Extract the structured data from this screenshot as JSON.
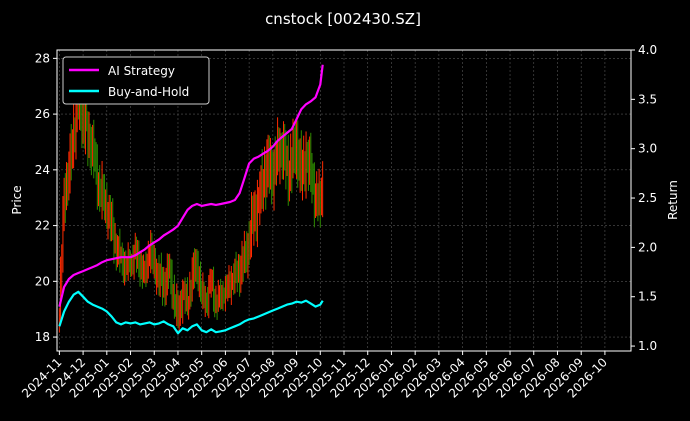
{
  "chart_data": {
    "type": "line",
    "title": "cnstock [002430.SZ]",
    "ylabel_left": "Price",
    "ylabel_right": "Return",
    "y_left_lim": [
      17.5,
      28.3
    ],
    "y_left_ticks": [
      18,
      20,
      22,
      24,
      26,
      28
    ],
    "y_right_lim": [
      0.95,
      4.0
    ],
    "y_right_ticks": [
      1.0,
      1.5,
      2.0,
      2.5,
      3.0,
      3.5,
      4.0
    ],
    "x_ticks": [
      "2024-11",
      "2024-12",
      "2025-01",
      "2025-02",
      "2025-03",
      "2025-04",
      "2025-05",
      "2025-06",
      "2025-07",
      "2025-08",
      "2025-09",
      "2025-10",
      "2025-11",
      "2025-12",
      "2026-01",
      "2026-02",
      "2026-03",
      "2026-04",
      "2026-05",
      "2026-06",
      "2026-07",
      "2026-08",
      "2026-09",
      "2026-10"
    ],
    "x_range_months": [
      -0.1,
      24.1
    ],
    "legend_position": "top-left",
    "grid": true,
    "colors": {
      "ai": "#ff00ff",
      "bh": "#00ffff",
      "up": "#ff2a00",
      "down": "#2e8b00",
      "bg": "#000000"
    },
    "price": {
      "x": [
        0.0,
        0.2,
        0.4,
        0.6,
        0.8,
        1.0,
        1.2,
        1.4,
        1.6,
        1.8,
        2.0,
        2.2,
        2.4,
        2.6,
        2.8,
        3.0,
        3.2,
        3.4,
        3.6,
        3.8,
        4.0,
        4.2,
        4.4,
        4.6,
        4.8,
        5.0,
        5.2,
        5.4,
        5.6,
        5.8,
        6.0,
        6.2,
        6.4,
        6.6,
        6.8,
        7.0,
        7.2,
        7.4,
        7.6,
        7.8,
        8.0,
        8.2,
        8.4,
        8.6,
        8.8,
        9.0,
        9.2,
        9.4,
        9.6,
        9.8,
        10.0,
        10.2,
        10.4,
        10.6,
        10.8,
        11.0,
        11.1
      ],
      "y": [
        18.8,
        23.2,
        23.8,
        25.5,
        26.4,
        25.9,
        25.2,
        24.8,
        23.6,
        23.1,
        22.6,
        22.0,
        21.2,
        20.8,
        20.5,
        20.7,
        21.0,
        20.6,
        20.2,
        21.2,
        20.5,
        20.2,
        19.8,
        20.4,
        19.6,
        18.7,
        19.6,
        19.2,
        20.2,
        20.6,
        19.5,
        19.3,
        20.0,
        19.2,
        19.5,
        19.6,
        20.0,
        20.2,
        20.4,
        20.8,
        21.5,
        22.4,
        22.8,
        23.8,
        24.1,
        23.9,
        24.6,
        24.8,
        24.0,
        24.3,
        24.9,
        23.8,
        24.5,
        23.9,
        23.0,
        22.8,
        23.8
      ],
      "spread": [
        0.8,
        1.0,
        1.1,
        1.2,
        1.2,
        1.2,
        1.1,
        1.0,
        1.0,
        1.0,
        0.9,
        0.9,
        0.8,
        0.7,
        0.7,
        0.6,
        0.7,
        0.7,
        0.7,
        0.8,
        0.8,
        0.8,
        0.8,
        0.8,
        0.8,
        0.8,
        0.7,
        0.7,
        0.8,
        0.8,
        0.7,
        0.7,
        0.7,
        0.7,
        0.6,
        0.6,
        0.7,
        0.7,
        0.8,
        0.9,
        1.0,
        1.1,
        1.1,
        1.2,
        1.2,
        1.2,
        1.1,
        1.1,
        1.2,
        1.2,
        1.2,
        1.2,
        1.1,
        1.1,
        1.0,
        1.0,
        0.9
      ]
    },
    "series": [
      {
        "name": "AI Strategy",
        "x": [
          0.0,
          0.2,
          0.4,
          0.6,
          0.8,
          1.0,
          1.2,
          1.4,
          1.6,
          1.8,
          2.0,
          2.2,
          2.4,
          2.6,
          2.8,
          3.0,
          3.2,
          3.4,
          3.6,
          3.8,
          4.0,
          4.2,
          4.4,
          4.6,
          4.8,
          5.0,
          5.2,
          5.4,
          5.6,
          5.8,
          6.0,
          6.2,
          6.4,
          6.6,
          6.8,
          7.0,
          7.2,
          7.4,
          7.6,
          7.8,
          8.0,
          8.2,
          8.4,
          8.6,
          8.8,
          9.0,
          9.2,
          9.4,
          9.6,
          9.8,
          10.0,
          10.2,
          10.4,
          10.6,
          10.8,
          11.0,
          11.1
        ],
        "y": [
          1.4,
          1.6,
          1.68,
          1.72,
          1.74,
          1.76,
          1.78,
          1.8,
          1.82,
          1.85,
          1.87,
          1.88,
          1.89,
          1.9,
          1.9,
          1.9,
          1.92,
          1.95,
          1.98,
          2.02,
          2.05,
          2.08,
          2.12,
          2.15,
          2.18,
          2.22,
          2.3,
          2.38,
          2.42,
          2.44,
          2.42,
          2.43,
          2.44,
          2.43,
          2.44,
          2.45,
          2.46,
          2.48,
          2.55,
          2.7,
          2.85,
          2.9,
          2.92,
          2.95,
          2.98,
          3.02,
          3.08,
          3.12,
          3.16,
          3.2,
          3.3,
          3.4,
          3.45,
          3.48,
          3.52,
          3.65,
          3.85
        ]
      },
      {
        "name": "Buy-and-Hold",
        "x": [
          0.0,
          0.2,
          0.4,
          0.6,
          0.8,
          1.0,
          1.2,
          1.4,
          1.6,
          1.8,
          2.0,
          2.2,
          2.4,
          2.6,
          2.8,
          3.0,
          3.2,
          3.4,
          3.6,
          3.8,
          4.0,
          4.2,
          4.4,
          4.6,
          4.8,
          5.0,
          5.2,
          5.4,
          5.6,
          5.8,
          6.0,
          6.2,
          6.4,
          6.6,
          6.8,
          7.0,
          7.2,
          7.4,
          7.6,
          7.8,
          8.0,
          8.2,
          8.4,
          8.6,
          8.8,
          9.0,
          9.2,
          9.4,
          9.6,
          9.8,
          10.0,
          10.2,
          10.4,
          10.6,
          10.8,
          11.0,
          11.1
        ],
        "y": [
          1.2,
          1.35,
          1.45,
          1.52,
          1.55,
          1.5,
          1.45,
          1.42,
          1.4,
          1.38,
          1.35,
          1.3,
          1.24,
          1.22,
          1.24,
          1.23,
          1.24,
          1.22,
          1.23,
          1.24,
          1.22,
          1.23,
          1.25,
          1.22,
          1.2,
          1.13,
          1.18,
          1.16,
          1.2,
          1.22,
          1.16,
          1.14,
          1.17,
          1.14,
          1.15,
          1.16,
          1.18,
          1.2,
          1.22,
          1.25,
          1.27,
          1.28,
          1.3,
          1.32,
          1.34,
          1.36,
          1.38,
          1.4,
          1.42,
          1.43,
          1.45,
          1.44,
          1.46,
          1.43,
          1.4,
          1.42,
          1.46
        ]
      }
    ]
  }
}
